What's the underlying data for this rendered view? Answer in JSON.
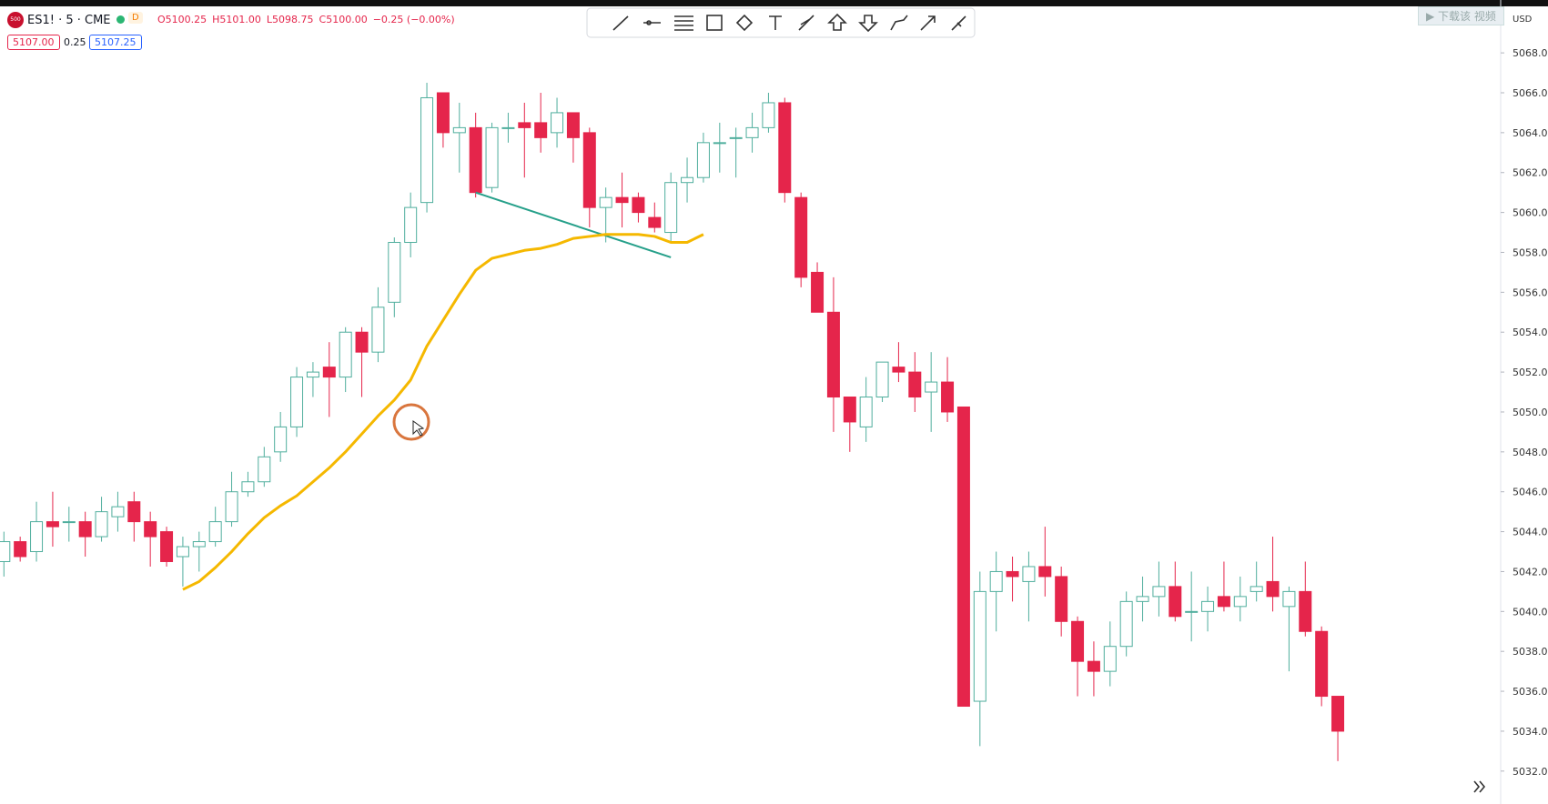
{
  "ui": {
    "logo": "500",
    "symbol": "ES1! · 5 · CME",
    "status_badge": "D",
    "ohlc": [
      "O5100.25",
      "H5101.00",
      "L5098.75",
      "C5100.00",
      "−0.25 (−0.00%)"
    ],
    "sell_price": "5107.00",
    "spread": "0.25",
    "buy_price": "5107.25",
    "currency": "USD",
    "watermark": "▶ 下载该 视频"
  },
  "chart_data": {
    "type": "candlestick",
    "up_color": "#4fae9d",
    "down_color": "#e5254b",
    "grid": false,
    "ylim": [
      5030.35,
      5070.65
    ],
    "yticks": [
      {
        "value": 5032,
        "label": "5032.00"
      },
      {
        "value": 5034,
        "label": "5034.00"
      },
      {
        "value": 5036,
        "label": "5036.00"
      },
      {
        "value": 5038,
        "label": "5038.00"
      },
      {
        "value": 5040,
        "label": "5040.00"
      },
      {
        "value": 5042,
        "label": "5042.00"
      },
      {
        "value": 5044,
        "label": "5044.00"
      },
      {
        "value": 5046,
        "label": "5046.00"
      },
      {
        "value": 5048,
        "label": "5048.00"
      },
      {
        "value": 5050,
        "label": "5050.00"
      },
      {
        "value": 5052,
        "label": "5052.00"
      },
      {
        "value": 5054,
        "label": "5054.00"
      },
      {
        "value": 5056,
        "label": "5056.00"
      },
      {
        "value": 5058,
        "label": "5058.00"
      },
      {
        "value": 5060,
        "label": "5060.00"
      },
      {
        "value": 5062,
        "label": "5062.00"
      },
      {
        "value": 5064,
        "label": "5064.00"
      },
      {
        "value": 5066,
        "label": "5066.00"
      },
      {
        "value": 5068,
        "label": "5068.00"
      }
    ],
    "open": [
      5042.5,
      5043.5,
      5043,
      5044.5,
      5044.5,
      5044.5,
      5043.75,
      5044.75,
      5045.5,
      5044.5,
      5044,
      5042.75,
      5043.25,
      5043.5,
      5044.5,
      5046,
      5046.5,
      5048,
      5049.25,
      5051.75,
      5052.25,
      5051.75,
      5054,
      5053,
      5055.5,
      5058.5,
      5060.5,
      5066,
      5064,
      5064.25,
      5061.25,
      5064.25,
      5064.5,
      5064.5,
      5064,
      5065,
      5064,
      5060.25,
      5060.75,
      5060.75,
      5059.75,
      5059,
      5061.5,
      5061.75,
      5063.5,
      5063.75,
      5063.75,
      5064.25,
      5065.5,
      5060.75,
      5057,
      5055,
      5050.75,
      5049.25,
      5050.75,
      5052.25,
      5052,
      5051,
      5051.5,
      5050.25,
      5035.5,
      5041,
      5042,
      5041.5,
      5042.25,
      5041.75,
      5039.5,
      5037.5,
      5037,
      5038.25,
      5040.5,
      5040.75,
      5041.25,
      5040,
      5040,
      5040.75,
      5040.25,
      5041,
      5041.5,
      5040.25,
      5041,
      5039,
      5035.75
    ],
    "high": [
      5044,
      5043.75,
      5045.5,
      5046,
      5045.25,
      5045,
      5045.75,
      5046,
      5046,
      5045,
      5044.25,
      5043.75,
      5044,
      5045.25,
      5047,
      5047,
      5048.25,
      5050,
      5052.25,
      5052.5,
      5053.5,
      5054.25,
      5054.25,
      5056.25,
      5058.75,
      5061,
      5066.5,
      5066,
      5065.5,
      5065,
      5064.5,
      5065,
      5065.5,
      5066,
      5065.75,
      5065,
      5064.25,
      5061.25,
      5062,
      5061,
      5060.5,
      5062,
      5062.75,
      5064,
      5064.5,
      5064.25,
      5065,
      5066,
      5065.75,
      5061,
      5057.5,
      5056.75,
      5050.75,
      5051.75,
      5052.5,
      5053.5,
      5053,
      5053,
      5052.75,
      5050.25,
      5042,
      5043,
      5042.75,
      5043,
      5044.25,
      5042.25,
      5039.75,
      5038.5,
      5039.5,
      5041,
      5041.75,
      5042.5,
      5042.5,
      5042,
      5041.25,
      5042.5,
      5041.75,
      5042.5,
      5043.75,
      5041.25,
      5042.5,
      5039.25,
      5035.75
    ],
    "low": [
      5041.75,
      5042.5,
      5042.5,
      5043.25,
      5043.5,
      5042.75,
      5043.5,
      5044,
      5043.5,
      5042.25,
      5042.25,
      5041.25,
      5042,
      5043.25,
      5044.25,
      5045.75,
      5046.25,
      5047.5,
      5048.75,
      5050.75,
      5049.75,
      5051,
      5050.75,
      5052.5,
      5054.75,
      5057.75,
      5060,
      5063.25,
      5062,
      5060.75,
      5061,
      5063.5,
      5061.75,
      5063,
      5063.25,
      5062.5,
      5059.25,
      5058.5,
      5059.25,
      5059.5,
      5059,
      5058.5,
      5060.5,
      5061.5,
      5062,
      5061.75,
      5063,
      5064,
      5060.5,
      5056.25,
      5055,
      5049,
      5048,
      5048.5,
      5050.5,
      5051.5,
      5050,
      5049,
      5049.5,
      5035.25,
      5033.25,
      5039,
      5040.5,
      5039.5,
      5040.75,
      5038.75,
      5035.75,
      5035.75,
      5036.25,
      5037.75,
      5039.5,
      5039.75,
      5039.5,
      5038.5,
      5039,
      5040,
      5039.5,
      5040.5,
      5040,
      5037,
      5038.75,
      5035.25,
      5032.5
    ],
    "close": [
      5043.5,
      5042.75,
      5044.5,
      5044.25,
      5044.5,
      5043.75,
      5045,
      5045.25,
      5044.5,
      5043.75,
      5042.5,
      5043.25,
      5043.5,
      5044.5,
      5046,
      5046.5,
      5047.75,
      5049.25,
      5051.75,
      5052,
      5051.75,
      5054,
      5053,
      5055.25,
      5058.5,
      5060.25,
      5065.75,
      5064,
      5064.25,
      5061,
      5064.25,
      5064.25,
      5064.25,
      5063.75,
      5065,
      5063.75,
      5060.25,
      5060.75,
      5060.5,
      5060,
      5059.25,
      5061.5,
      5061.75,
      5063.5,
      5063.5,
      5063.75,
      5064.25,
      5065.5,
      5061,
      5056.75,
      5055,
      5050.75,
      5049.5,
      5050.75,
      5052.5,
      5052,
      5050.75,
      5051.5,
      5050,
      5035.25,
      5041,
      5042,
      5041.75,
      5042.25,
      5041.75,
      5039.5,
      5037.5,
      5037,
      5038.25,
      5040.5,
      5040.75,
      5041.25,
      5039.75,
      5040,
      5040.5,
      5040.25,
      5040.75,
      5041.25,
      5040.75,
      5041,
      5039,
      5035.75,
      5034
    ],
    "overlay": {
      "type": "line",
      "color": "#f5b800",
      "values": [
        null,
        null,
        null,
        null,
        null,
        null,
        null,
        null,
        null,
        null,
        null,
        5041.1,
        5041.5,
        5042.2,
        5043.0,
        5043.9,
        5044.7,
        5045.3,
        5045.8,
        5046.5,
        5047.2,
        5048.0,
        5048.9,
        5049.8,
        5050.6,
        5051.6,
        5053.3,
        5054.6,
        5055.9,
        5057.1,
        5057.7,
        5057.9,
        5058.1,
        5058.2,
        5058.4,
        5058.7,
        5058.8,
        5058.9,
        5058.9,
        5058.9,
        5058.8,
        5058.5,
        5058.5,
        5058.9,
        null,
        null,
        null,
        null,
        null,
        null,
        null,
        null,
        null,
        null,
        null,
        null,
        null,
        null,
        null,
        null,
        null,
        null,
        null,
        null,
        null,
        null,
        null,
        null,
        null,
        null,
        null,
        null,
        null,
        null,
        null,
        null,
        null,
        null,
        null,
        null,
        null,
        null,
        null
      ]
    },
    "trend_line": {
      "color": "#26a08a",
      "x": [
        29,
        41
      ],
      "values": [
        5061,
        5057.75
      ]
    }
  }
}
